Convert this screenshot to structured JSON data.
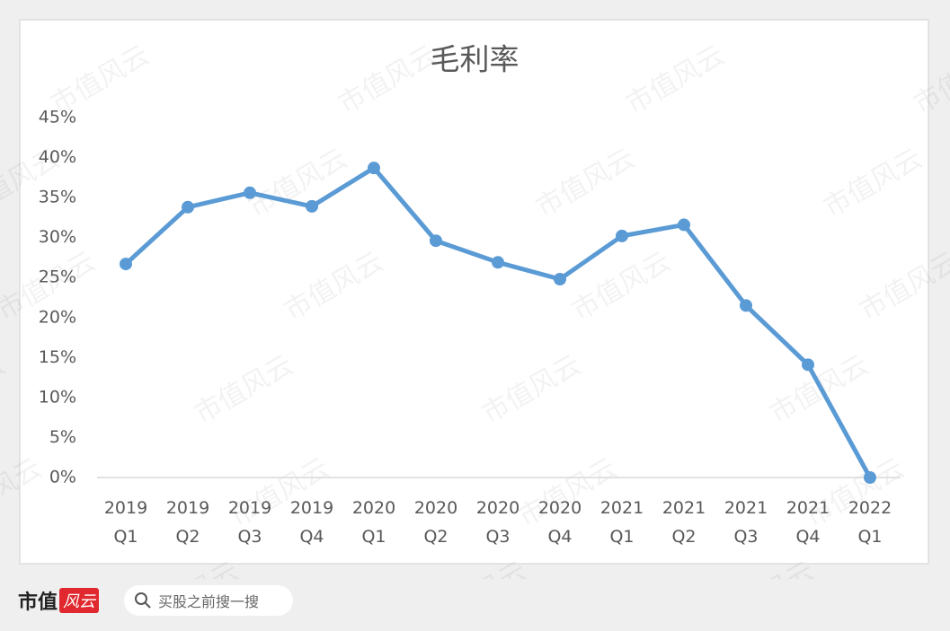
{
  "chart_data": {
    "type": "line",
    "title": "毛利率",
    "categories": [
      "2019 Q1",
      "2019 Q2",
      "2019 Q3",
      "2019 Q4",
      "2020 Q1",
      "2020 Q2",
      "2020 Q3",
      "2020 Q4",
      "2021 Q1",
      "2021 Q2",
      "2021 Q3",
      "2021 Q4",
      "2022 Q1"
    ],
    "series": [
      {
        "color": "#5b9bd5",
        "values": [
          26.7,
          33.8,
          35.6,
          33.9,
          38.7,
          29.6,
          26.9,
          24.8,
          30.2,
          31.6,
          21.5,
          14.1,
          0
        ]
      }
    ],
    "ylim": [
      0,
      45
    ],
    "yticks": [
      {
        "value": 0,
        "label": "0%"
      },
      {
        "value": 5,
        "label": "5%"
      },
      {
        "value": 10,
        "label": "10%"
      },
      {
        "value": 15,
        "label": "15%"
      },
      {
        "value": 20,
        "label": "20%"
      },
      {
        "value": 25,
        "label": "25%"
      },
      {
        "value": 30,
        "label": "30%"
      },
      {
        "value": 35,
        "label": "35%"
      },
      {
        "value": 40,
        "label": "40%"
      },
      {
        "value": 45,
        "label": "45%"
      }
    ],
    "grid": false
  },
  "watermark": "市值风云",
  "footer": {
    "logo": "市值",
    "logo_mark": "风云",
    "search_placeholder": "买股之前搜一搜"
  }
}
